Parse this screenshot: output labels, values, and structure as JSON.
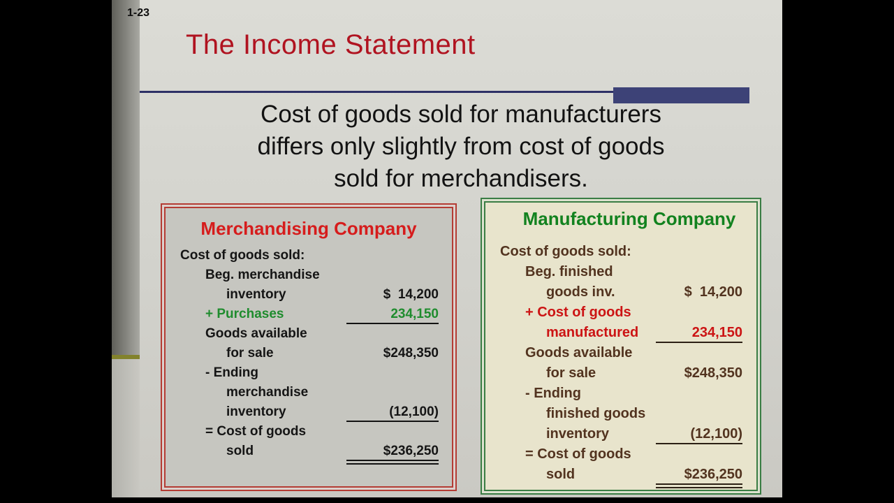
{
  "slide": {
    "page_number": "1-23",
    "title": "The Income Statement",
    "lead_lines": [
      "Cost of goods sold for manufacturers",
      "differs only slightly from cost of goods",
      "sold for merchandisers."
    ]
  },
  "merch_box": {
    "title": "Merchandising Company",
    "rows": [
      {
        "label": "Cost of goods sold:",
        "indent": 0,
        "amount": ""
      },
      {
        "label": "Beg. merchandise",
        "indent": 1,
        "amount": ""
      },
      {
        "label": "inventory",
        "indent": 2,
        "amount": "$  14,200"
      },
      {
        "label": "+ Purchases",
        "indent": 1,
        "amount": "234,150",
        "color": "#1f8c2e",
        "underline": "single"
      },
      {
        "label": "Goods available",
        "indent": 1,
        "amount": ""
      },
      {
        "label": "for sale",
        "indent": 2,
        "amount": "$248,350"
      },
      {
        "label": "- Ending",
        "indent": 1,
        "amount": ""
      },
      {
        "label": "merchandise",
        "indent": 2,
        "amount": ""
      },
      {
        "label": "inventory",
        "indent": 2,
        "amount": "(12,100)",
        "underline": "single"
      },
      {
        "label": "= Cost of goods",
        "indent": 1,
        "amount": ""
      },
      {
        "label": "sold",
        "indent": 2,
        "amount": "$236,250",
        "underline": "double"
      }
    ]
  },
  "mfg_box": {
    "title": "Manufacturing Company",
    "rows": [
      {
        "label": "Cost of goods sold:",
        "indent": 0,
        "amount": ""
      },
      {
        "label": "Beg. finished",
        "indent": 1,
        "amount": ""
      },
      {
        "label": "goods inv.",
        "indent": 2,
        "amount": "$  14,200"
      },
      {
        "label": "+ Cost of goods",
        "indent": 1,
        "amount": "",
        "color": "#cc1414"
      },
      {
        "label": "manufactured",
        "indent": 2,
        "amount": "234,150",
        "color": "#cc1414",
        "underline": "single"
      },
      {
        "label": "Goods available",
        "indent": 1,
        "amount": ""
      },
      {
        "label": "for sale",
        "indent": 2,
        "amount": "$248,350"
      },
      {
        "label": "- Ending",
        "indent": 1,
        "amount": ""
      },
      {
        "label": "finished goods",
        "indent": 2,
        "amount": ""
      },
      {
        "label": "inventory",
        "indent": 2,
        "amount": "(12,100)",
        "underline": "single"
      },
      {
        "label": "= Cost of goods",
        "indent": 1,
        "amount": ""
      },
      {
        "label": "sold",
        "indent": 2,
        "amount": "$236,250",
        "underline": "double"
      }
    ]
  },
  "colors": {
    "title_red": "#b01320",
    "rule_navy": "#2d3066",
    "accent_navy": "#3d4277",
    "olive_accent": "#82822c",
    "merch_title_red": "#d61c1c",
    "merch_border_red": "#b43c34",
    "green_text": "#1f8c2e",
    "mfg_title_green": "#12821f",
    "mfg_border_green": "#3a7d44",
    "mfg_text_brown": "#52331f",
    "mfg_red_text": "#cc1414"
  }
}
